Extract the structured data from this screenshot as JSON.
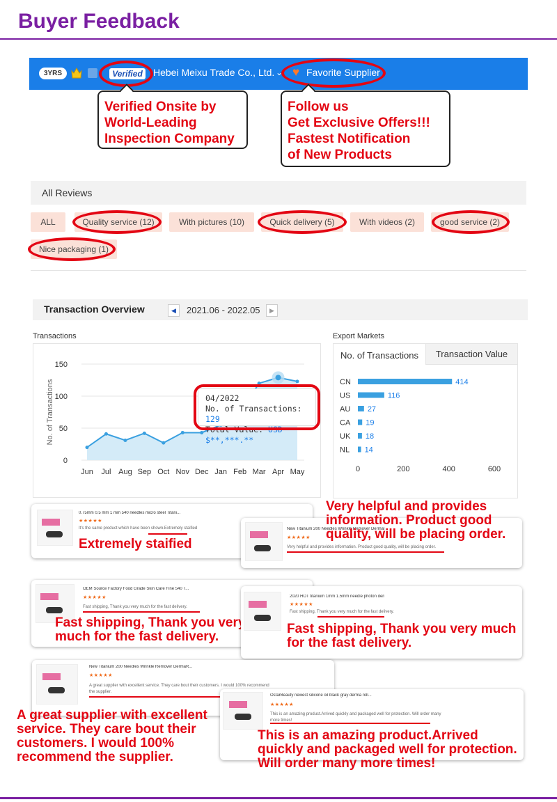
{
  "page": {
    "title": "Buyer Feedback"
  },
  "supplier_bar": {
    "years_badge": "3YRS",
    "verified_label": "Verified",
    "company_name": "Hebei Meixu Trade Co., Ltd.",
    "chevron": "⌄",
    "favorite_label": "Favorite Supplier"
  },
  "callouts": {
    "verified": [
      "Verified Onsite by",
      "World-Leading",
      "Inspection Company"
    ],
    "follow": [
      "Follow us",
      "Get Exclusive Offers!!!",
      "Fastest Notification",
      "of New Products"
    ]
  },
  "reviews": {
    "header": "All Reviews",
    "filters": [
      "ALL",
      "Quality service (12)",
      "With pictures (10)",
      "Quick delivery (5)",
      "With videos (2)",
      "good service (2)",
      "Nice packaging (1)"
    ]
  },
  "transactions": {
    "title": "Transaction Overview",
    "prev_icon": "◀",
    "next_icon": "▶",
    "date_range": "2021.06 - 2022.05",
    "chart_label": "Transactions",
    "tooltip": {
      "date": "04/2022",
      "count_label": "No. of Transactions:",
      "count_value": "129",
      "value_label": "Total Value:",
      "value_value": "USD $**,***.**"
    }
  },
  "export": {
    "label": "Export Markets",
    "tabs": [
      "No. of Transactions",
      "Transaction Value"
    ]
  },
  "chart_data": [
    {
      "type": "area",
      "title": "Transactions",
      "xlabel": "",
      "ylabel": "No. of Transactions",
      "categories": [
        "Jun",
        "Jul",
        "Aug",
        "Sep",
        "Oct",
        "Nov",
        "Dec",
        "Jan",
        "Feb",
        "Mar",
        "Apr",
        "May"
      ],
      "values": [
        20,
        41,
        31,
        42,
        27,
        43,
        43,
        55,
        75,
        120,
        129,
        123
      ],
      "yticks": [
        0,
        50,
        100,
        150
      ],
      "ylim": [
        0,
        150
      ],
      "grid": true,
      "color": "#3aa0e0"
    },
    {
      "type": "bar",
      "orientation": "horizontal",
      "title": "Export Markets",
      "categories": [
        "CN",
        "US",
        "AU",
        "CA",
        "UK",
        "NL"
      ],
      "values": [
        414,
        116,
        27,
        19,
        18,
        14
      ],
      "xticks": [
        0,
        200,
        400,
        600
      ],
      "xlim": [
        0,
        600
      ],
      "color": "#3aa0e0"
    }
  ],
  "review_cards": [
    {
      "title": "0.75mm 0.5 mm 1 mm 540 needles micro steel Titani...",
      "stars": "★★★★★",
      "text": "It's the same product which have been shown.Extremely staified",
      "caption": "Extremely staified"
    },
    {
      "title": "New Titanium 200 Needles Wrinkle Remover DermaR...",
      "stars": "★★★★★",
      "text": "Very helpful and provides information. Product good quality, will be placing order.",
      "caption": "Very helpful and provides information. Product good quality, will be placing order."
    },
    {
      "title": "OEM Source Factory Food Grade Skin Care Fine 540 T...",
      "stars": "★★★★★",
      "text": "Fast shipping, Thank you very much for the fast delivery.",
      "caption": "Fast shipping, Thank you very much for the fast delivery."
    },
    {
      "title": "2020 HOT titanium 1mm 1.5mm needle photon derm...",
      "stars": "★★★★★",
      "text": "Fast shipping, Thank you very much for the fast delivery.",
      "caption": "Fast shipping, Thank you very much for the fast delivery."
    },
    {
      "title": "New Titanium 200 Needles Wrinkle Remover DermaR...",
      "stars": "★★★★★",
      "text": "A great supplier with excellent service. They care bout their customers. I would 100% recommend the supplier.",
      "caption": "A great supplier with excellent service. They care bout their customers. I would 100% recommend the supplier."
    },
    {
      "title": "OstarBeauty newest silicone oil black gray derma roll...",
      "stars": "★★★★★",
      "text": "This is an amazing product.Arrived quickly and packaged well for protection. Will order many more times!",
      "caption": "This is an amazing product.Arrived quickly and packaged well for protection. Will order many more times!"
    }
  ],
  "icons": [
    "crown-icon",
    "shield-icon",
    "heart-icon",
    "chevron-down-icon",
    "star-icon"
  ],
  "colors": {
    "brand_purple": "#7a1fa2",
    "supplier_blue": "#1a7ee8",
    "accent_red": "#e30613",
    "chip_peach": "#fbe1d8",
    "chart_blue": "#3aa0e0"
  }
}
